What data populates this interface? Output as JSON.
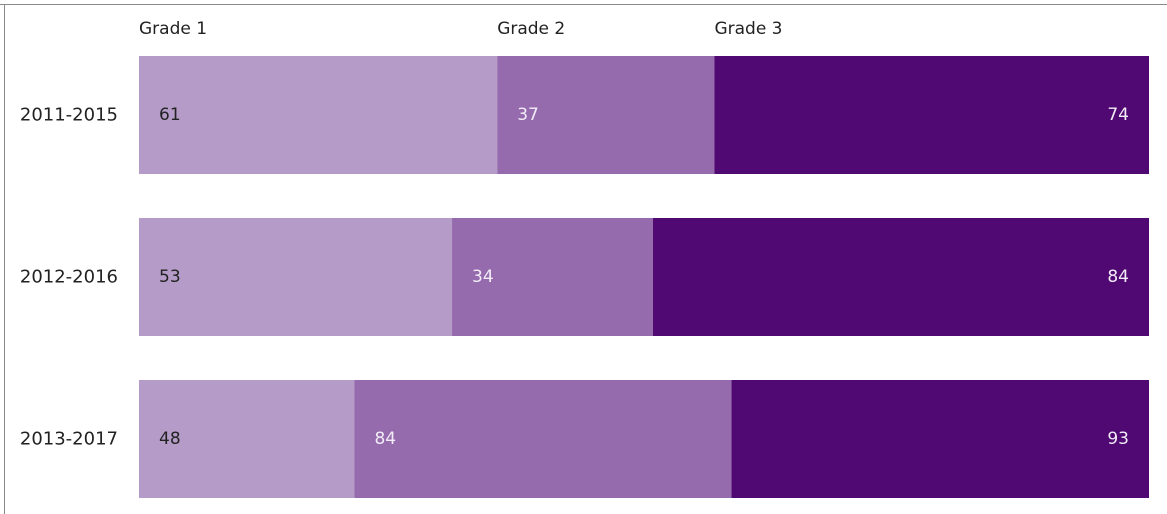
{
  "chart_data": {
    "type": "bar",
    "orientation": "horizontal",
    "stacked": true,
    "categories": [
      "2011-2015",
      "2012-2016",
      "2013-2017"
    ],
    "series": [
      {
        "name": "Grade 1",
        "values": [
          61,
          53,
          48
        ],
        "color": "#b59cc8",
        "label_color": "#222222"
      },
      {
        "name": "Grade 2",
        "values": [
          37,
          34,
          84
        ],
        "color": "#956bad",
        "label_color": "#f2ecf7"
      },
      {
        "name": "Grade 3",
        "values": [
          74,
          84,
          93
        ],
        "color": "#500873",
        "label_color": "#f2ecf7"
      }
    ],
    "legend_position": "top",
    "grid": false,
    "value_labels": true
  }
}
